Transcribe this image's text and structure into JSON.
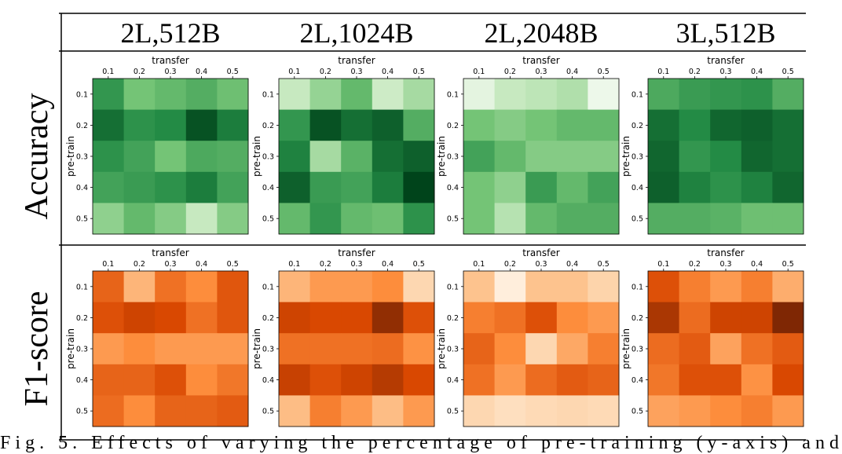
{
  "table": {
    "columns": [
      "2L,512B",
      "2L,1024B",
      "2L,2048B",
      "3L,512B"
    ],
    "rows": [
      "Accuracy",
      "F1-score"
    ]
  },
  "caption": "Fig. 5.  Effects of varying the percentage of pre-training (y-axis) and",
  "chart_data": [
    {
      "type": "heatmap",
      "xlabel": "transfer",
      "ylabel": "pre-train",
      "x": [
        0.1,
        0.2,
        0.3,
        0.4,
        0.5
      ],
      "y": [
        0.1,
        0.2,
        0.3,
        0.4,
        0.5
      ],
      "vlim": [
        0,
        1
      ],
      "cmap": [
        "#f7fcf5",
        "#c7e9c0",
        "#74c476",
        "#238b45",
        "#00441b"
      ],
      "values": [
        [
          0.7,
          0.5,
          0.55,
          0.6,
          0.52
        ],
        [
          0.85,
          0.72,
          0.75,
          0.95,
          0.8
        ],
        [
          0.72,
          0.65,
          0.5,
          0.62,
          0.6
        ],
        [
          0.65,
          0.68,
          0.72,
          0.8,
          0.65
        ],
        [
          0.42,
          0.55,
          0.45,
          0.25,
          0.45
        ]
      ]
    },
    {
      "type": "heatmap",
      "xlabel": "transfer",
      "ylabel": "pre-train",
      "x": [
        0.1,
        0.2,
        0.3,
        0.4,
        0.5
      ],
      "y": [
        0.1,
        0.2,
        0.3,
        0.4,
        0.5
      ],
      "vlim": [
        0,
        1
      ],
      "cmap": [
        "#f7fcf5",
        "#c7e9c0",
        "#74c476",
        "#238b45",
        "#00441b"
      ],
      "values": [
        [
          0.25,
          0.4,
          0.55,
          0.22,
          0.35
        ],
        [
          0.7,
          0.95,
          0.85,
          0.9,
          0.6
        ],
        [
          0.78,
          0.35,
          0.58,
          0.85,
          0.9
        ],
        [
          0.9,
          0.68,
          0.65,
          0.8,
          1.0
        ],
        [
          0.55,
          0.7,
          0.55,
          0.52,
          0.72
        ]
      ]
    },
    {
      "type": "heatmap",
      "xlabel": "transfer",
      "ylabel": "pre-train",
      "x": [
        0.1,
        0.2,
        0.3,
        0.4,
        0.5
      ],
      "y": [
        0.1,
        0.2,
        0.3,
        0.4,
        0.5
      ],
      "vlim": [
        0,
        1
      ],
      "cmap": [
        "#f7fcf5",
        "#c7e9c0",
        "#74c476",
        "#238b45",
        "#00441b"
      ],
      "values": [
        [
          0.1,
          0.25,
          0.28,
          0.32,
          0.05
        ],
        [
          0.5,
          0.45,
          0.5,
          0.55,
          0.55
        ],
        [
          0.65,
          0.55,
          0.45,
          0.45,
          0.45
        ],
        [
          0.5,
          0.42,
          0.68,
          0.55,
          0.65
        ],
        [
          0.5,
          0.3,
          0.55,
          0.6,
          0.6
        ]
      ]
    },
    {
      "type": "heatmap",
      "xlabel": "transfer",
      "ylabel": "pre-train",
      "x": [
        0.1,
        0.2,
        0.3,
        0.4,
        0.5
      ],
      "y": [
        0.1,
        0.2,
        0.3,
        0.4,
        0.5
      ],
      "vlim": [
        0,
        1
      ],
      "cmap": [
        "#f7fcf5",
        "#c7e9c0",
        "#74c476",
        "#238b45",
        "#00441b"
      ],
      "values": [
        [
          0.62,
          0.68,
          0.7,
          0.72,
          0.6
        ],
        [
          0.85,
          0.75,
          0.88,
          0.9,
          0.85
        ],
        [
          0.88,
          0.7,
          0.75,
          0.88,
          0.85
        ],
        [
          0.9,
          0.78,
          0.72,
          0.78,
          0.88
        ],
        [
          0.6,
          0.6,
          0.58,
          0.52,
          0.52
        ]
      ]
    },
    {
      "type": "heatmap",
      "xlabel": "transfer",
      "ylabel": "pre-train",
      "x": [
        0.1,
        0.2,
        0.3,
        0.4,
        0.5
      ],
      "y": [
        0.1,
        0.2,
        0.3,
        0.4,
        0.5
      ],
      "vlim": [
        0,
        1
      ],
      "cmap": [
        "#fff5eb",
        "#fdd0a2",
        "#fd8d3c",
        "#d94801",
        "#7f2704"
      ],
      "values": [
        [
          0.65,
          0.35,
          0.6,
          0.5,
          0.7
        ],
        [
          0.72,
          0.78,
          0.75,
          0.6,
          0.7
        ],
        [
          0.45,
          0.5,
          0.45,
          0.45,
          0.45
        ],
        [
          0.65,
          0.65,
          0.72,
          0.5,
          0.58
        ],
        [
          0.62,
          0.5,
          0.65,
          0.65,
          0.68
        ]
      ]
    },
    {
      "type": "heatmap",
      "xlabel": "transfer",
      "ylabel": "pre-train",
      "x": [
        0.1,
        0.2,
        0.3,
        0.4,
        0.5
      ],
      "y": [
        0.1,
        0.2,
        0.3,
        0.4,
        0.5
      ],
      "vlim": [
        0,
        1
      ],
      "cmap": [
        "#fff5eb",
        "#fdd0a2",
        "#fd8d3c",
        "#d94801",
        "#7f2704"
      ],
      "values": [
        [
          0.35,
          0.45,
          0.45,
          0.5,
          0.2
        ],
        [
          0.78,
          0.75,
          0.75,
          0.95,
          0.72
        ],
        [
          0.6,
          0.6,
          0.6,
          0.62,
          0.48
        ],
        [
          0.8,
          0.72,
          0.78,
          0.85,
          0.75
        ],
        [
          0.32,
          0.55,
          0.45,
          0.32,
          0.45
        ]
      ]
    },
    {
      "type": "heatmap",
      "xlabel": "transfer",
      "ylabel": "pre-train",
      "x": [
        0.1,
        0.2,
        0.3,
        0.4,
        0.5
      ],
      "y": [
        0.1,
        0.2,
        0.3,
        0.4,
        0.5
      ],
      "vlim": [
        0,
        1
      ],
      "cmap": [
        "#fff5eb",
        "#fdd0a2",
        "#fd8d3c",
        "#d94801",
        "#7f2704"
      ],
      "values": [
        [
          0.3,
          0.05,
          0.3,
          0.3,
          0.22
        ],
        [
          0.55,
          0.6,
          0.72,
          0.5,
          0.45
        ],
        [
          0.65,
          0.5,
          0.2,
          0.4,
          0.55
        ],
        [
          0.6,
          0.45,
          0.62,
          0.68,
          0.65
        ],
        [
          0.2,
          0.15,
          0.18,
          0.2,
          0.18
        ]
      ]
    },
    {
      "type": "heatmap",
      "xlabel": "transfer",
      "ylabel": "pre-train",
      "x": [
        0.1,
        0.2,
        0.3,
        0.4,
        0.5
      ],
      "y": [
        0.1,
        0.2,
        0.3,
        0.4,
        0.5
      ],
      "vlim": [
        0,
        1
      ],
      "cmap": [
        "#fff5eb",
        "#fdd0a2",
        "#fd8d3c",
        "#d94801",
        "#7f2704"
      ],
      "values": [
        [
          0.72,
          0.55,
          0.45,
          0.55,
          0.38
        ],
        [
          0.88,
          0.62,
          0.78,
          0.78,
          1.0
        ],
        [
          0.62,
          0.68,
          0.42,
          0.6,
          0.68
        ],
        [
          0.58,
          0.72,
          0.72,
          0.48,
          0.75
        ],
        [
          0.42,
          0.45,
          0.5,
          0.55,
          0.45
        ]
      ]
    }
  ]
}
